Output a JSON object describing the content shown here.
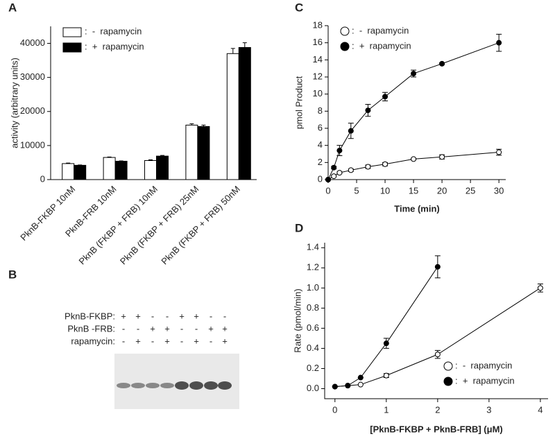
{
  "chart_data": [
    {
      "type": "bar",
      "panel_label": "A",
      "ylabel": "activity (arbitrary units)",
      "categories": [
        "PknB-FKBP 10nM",
        "PknB-FRB 10nM",
        "PknB (FKBP + FRB) 10nM",
        "PknB (FKBP + FRB) 25nM",
        "PknB (FKBP + FRB) 50nM"
      ],
      "series": [
        {
          "name": ":  -  rapamycin",
          "color": "#ffffff",
          "values": [
            4700,
            6500,
            5600,
            16000,
            37000
          ],
          "errors": [
            150,
            150,
            200,
            400,
            1500
          ]
        },
        {
          "name": ":  +  rapamycin",
          "color": "#000000",
          "values": [
            4200,
            5400,
            6900,
            15600,
            38800
          ],
          "errors": [
            100,
            100,
            200,
            400,
            1400
          ]
        }
      ],
      "ylim": [
        0,
        45000
      ],
      "yticks": [
        0,
        10000,
        20000,
        30000,
        40000
      ],
      "legend": "upper left"
    },
    {
      "type": "line",
      "panel_label": "C",
      "xlabel": "Time (min)",
      "ylabel": "pmol Product",
      "x": [
        0,
        1,
        2,
        4,
        7,
        10,
        15,
        20,
        30
      ],
      "series": [
        {
          "name": ":  -  rapamycin",
          "color": "#ffffff",
          "values": [
            0,
            0.4,
            0.8,
            1.1,
            1.5,
            1.8,
            2.4,
            2.65,
            3.2
          ],
          "errors": [
            0,
            0.1,
            0.1,
            0.15,
            0.2,
            0.2,
            0.1,
            0.25,
            0.35
          ]
        },
        {
          "name": ":  +  rapamycin",
          "color": "#000000",
          "values": [
            0,
            1.4,
            3.4,
            5.7,
            8.1,
            9.7,
            12.4,
            13.55,
            16
          ],
          "errors": [
            0,
            0.15,
            0.6,
            0.9,
            0.7,
            0.5,
            0.4,
            0.1,
            1.0
          ]
        }
      ],
      "xlim": [
        0,
        31.2
      ],
      "xticks": [
        0,
        5,
        10,
        15,
        20,
        25,
        30
      ],
      "ylim": [
        0,
        18
      ],
      "yticks": [
        0,
        2,
        4,
        6,
        8,
        10,
        12,
        14,
        16,
        18
      ],
      "legend": "upper left"
    },
    {
      "type": "line",
      "panel_label": "D",
      "xlabel": "[PknB-FKBP + PknB-FRB] (μM)",
      "ylabel": "Rate (pmol/min)",
      "series": [
        {
          "name": ":  -  rapamycin",
          "color": "#ffffff",
          "x": [
            0,
            0.25,
            0.5,
            1,
            2,
            4
          ],
          "values": [
            0.02,
            0.03,
            0.04,
            0.13,
            0.34,
            1.0
          ],
          "errors": [
            0,
            0,
            0,
            0.02,
            0.04,
            0.04
          ]
        },
        {
          "name": ":  +  rapamycin",
          "color": "#000000",
          "x": [
            0,
            0.25,
            0.5,
            1,
            2
          ],
          "values": [
            0.02,
            0.03,
            0.11,
            0.45,
            1.21
          ],
          "errors": [
            0,
            0,
            0,
            0.05,
            0.11
          ]
        }
      ],
      "xlim": [
        -0.2,
        4.15
      ],
      "xticks": [
        0,
        1,
        2,
        3,
        4
      ],
      "ylim": [
        -0.1,
        1.45
      ],
      "yticks": [
        {
          "value": 0,
          "label": "0.0"
        },
        0.2,
        0.4,
        0.6,
        0.8,
        {
          "value": 1,
          "label": "1.0"
        },
        1.2,
        1.4
      ],
      "legend": "lower right"
    }
  ],
  "gel": {
    "panel_label": "B",
    "row_labels": [
      "PknB-FKBP:",
      "PknB -FRB:",
      "rapamycin:"
    ],
    "signs": [
      [
        "+",
        "+",
        "-",
        "-",
        "+",
        "+",
        "-",
        "-"
      ],
      [
        "-",
        "-",
        "+",
        "+",
        "-",
        "-",
        "+",
        "+"
      ],
      [
        "-",
        "+",
        "-",
        "+",
        "-",
        "+",
        "-",
        "+"
      ]
    ]
  }
}
